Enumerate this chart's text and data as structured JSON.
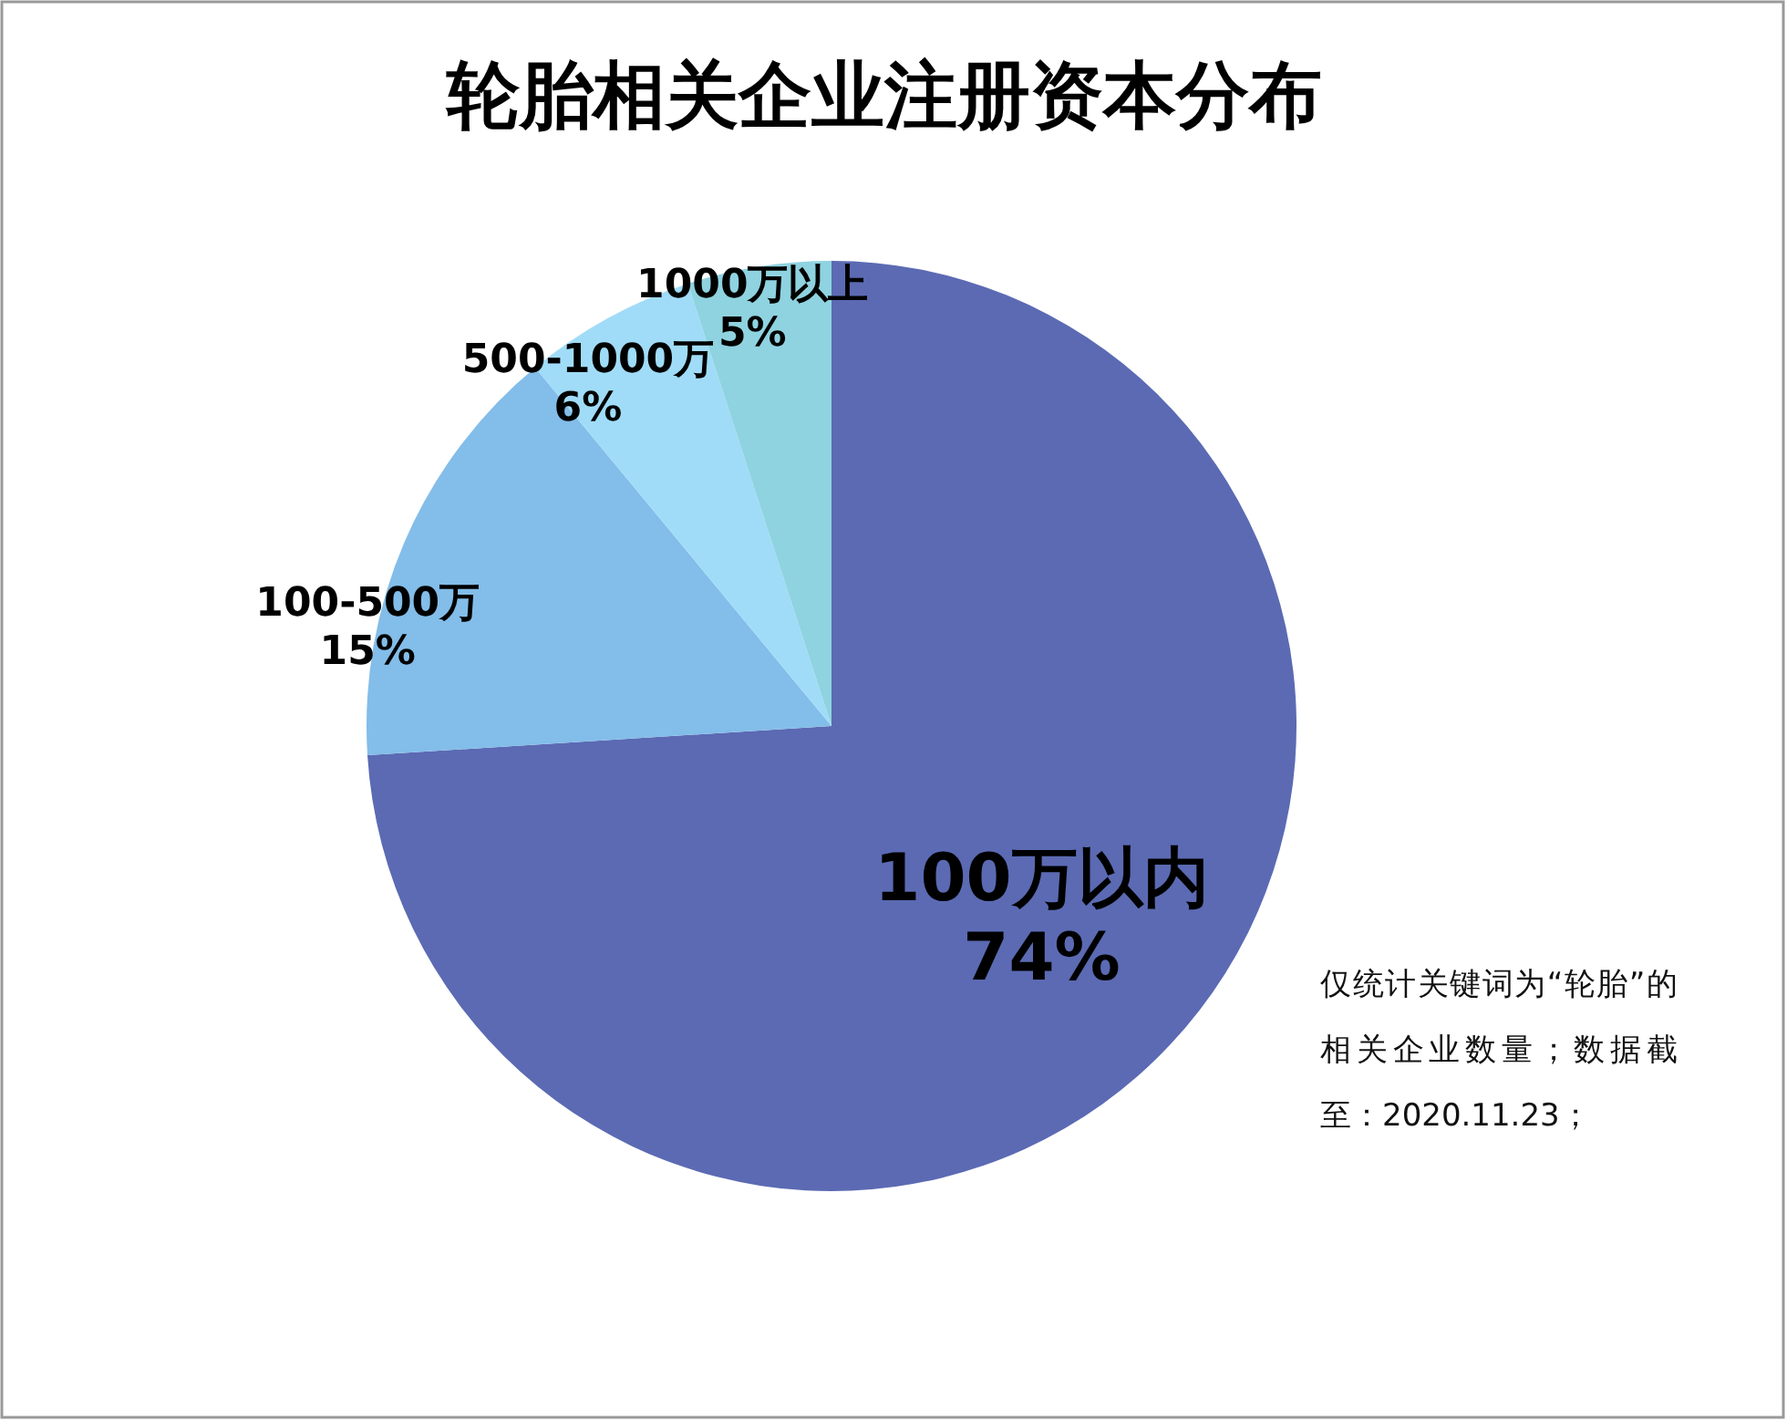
{
  "chart_data": {
    "type": "pie",
    "title": "轮胎相关企业注册资本分布",
    "categories": [
      "100万以内",
      "100-500万",
      "500-1000万",
      "1000万以上"
    ],
    "values": [
      74,
      15,
      6,
      5
    ],
    "colors": [
      "#5b6ab3",
      "#83bde9",
      "#a0dcf8",
      "#8fd3e0"
    ],
    "value_labels": [
      "74%",
      "15%",
      "6%",
      "5%"
    ],
    "annotations": [
      "仅统计关键词为“轮胎”的相关企业数量；数据截至：2020.11.23；"
    ]
  }
}
